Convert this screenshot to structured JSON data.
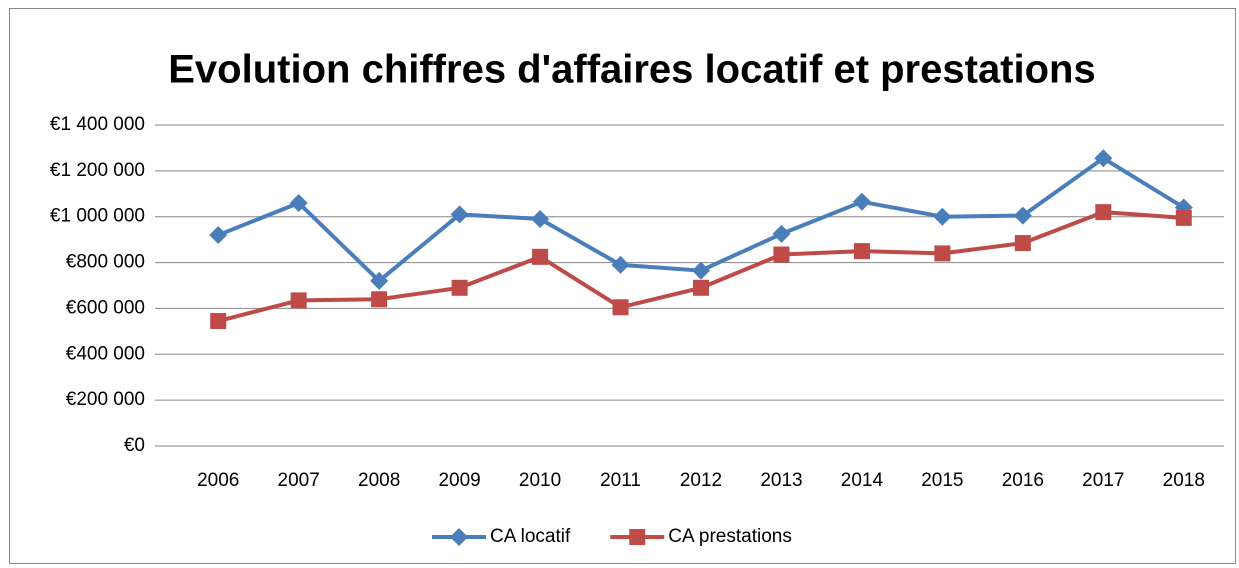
{
  "chart_data": {
    "type": "line",
    "title": "Evolution chiffres d'affaires locatif et prestations",
    "categories": [
      "2006",
      "2007",
      "2008",
      "2009",
      "2010",
      "2011",
      "2012",
      "2013",
      "2014",
      "2015",
      "2016",
      "2017",
      "2018"
    ],
    "series": [
      {
        "name": "CA locatif",
        "color": "#4a7ebb",
        "marker": "diamond",
        "values": [
          920000,
          1060000,
          720000,
          1010000,
          990000,
          790000,
          765000,
          925000,
          1065000,
          1000000,
          1005000,
          1255000,
          1040000
        ]
      },
      {
        "name": "CA prestations",
        "color": "#be4b48",
        "marker": "square",
        "values": [
          545000,
          635000,
          640000,
          690000,
          825000,
          605000,
          690000,
          835000,
          850000,
          840000,
          885000,
          1020000,
          995000
        ]
      }
    ],
    "ylim": [
      0,
      1400000
    ],
    "yticks": [
      {
        "value": 0,
        "label": "€0"
      },
      {
        "value": 200000,
        "label": "€200 000"
      },
      {
        "value": 400000,
        "label": "€400 000"
      },
      {
        "value": 600000,
        "label": "€600 000"
      },
      {
        "value": 800000,
        "label": "€800 000"
      },
      {
        "value": 1000000,
        "label": "€1 000 000"
      },
      {
        "value": 1200000,
        "label": "€1 200 000"
      },
      {
        "value": 1400000,
        "label": "€1 400 000"
      }
    ],
    "grid": true,
    "legend": "bottom"
  }
}
